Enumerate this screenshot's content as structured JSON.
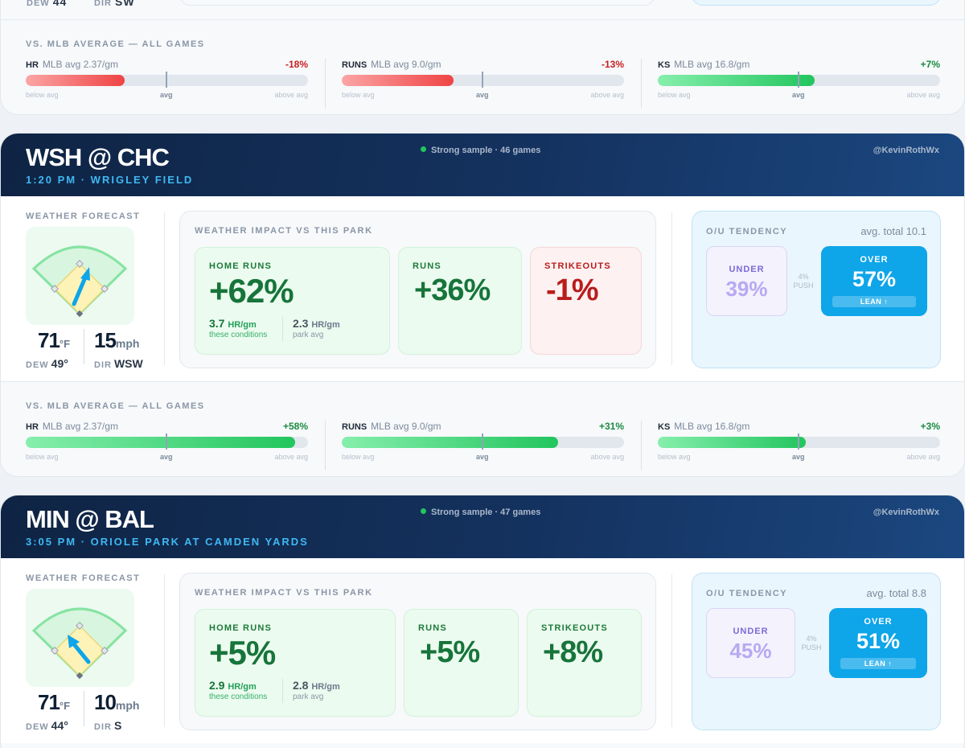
{
  "partial": {
    "dew_label": "DEW",
    "dew_value": "44",
    "dir_label": "DIR",
    "dir_value": "SW",
    "vs_label": "VS. MLB AVERAGE — ALL GAMES",
    "metrics": [
      {
        "name": "HR",
        "avg": "MLB avg 2.37/gm",
        "pct": "-18%",
        "fill_fraction": 0.35,
        "sign": "neg"
      },
      {
        "name": "RUNS",
        "avg": "MLB avg 9.0/gm",
        "pct": "-13%",
        "fill_fraction": 0.395,
        "sign": "neg"
      },
      {
        "name": "KS",
        "avg": "MLB avg 16.8/gm",
        "pct": "+7%",
        "fill_fraction": 0.555,
        "sign": "pos"
      }
    ]
  },
  "scale": {
    "below": "below avg",
    "mid": "avg",
    "above": "above avg"
  },
  "games": [
    {
      "title": "WSH @ CHC",
      "subtitle": "1:20 PM · WRIGLEY FIELD",
      "sample": "Strong sample · 46 games",
      "handle": "@KevinRothWx",
      "weather_label": "WEATHER FORECAST",
      "temp": "71",
      "temp_unit": "°F",
      "wind": "15",
      "wind_unit": "mph",
      "dew_label": "DEW",
      "dew": "49°",
      "dir_label": "DIR",
      "dir": "WSW",
      "impact_label": "WEATHER IMPACT VS THIS PARK",
      "hr_label": "HOME RUNS",
      "hr_pct": "+62%",
      "hr_value": "3.7",
      "hr_unit": "HR/gm",
      "hr_sub": "these conditions",
      "park_value": "2.3",
      "park_unit": "HR/gm",
      "park_sub": "park avg",
      "runs_label": "RUNS",
      "runs_pct": "+36%",
      "ks_label": "STRIKEOUTS",
      "ks_pct": "-1%",
      "ou_label": "O/U TENDENCY",
      "ou_avg": "avg. total 10.1",
      "under_label": "UNDER",
      "under_pct": "39%",
      "push": "4%",
      "push_label": "PUSH",
      "over_label": "OVER",
      "over_pct": "57%",
      "lean": "LEAN ↑",
      "vs_label": "VS. MLB AVERAGE — ALL GAMES",
      "metrics": [
        {
          "name": "HR",
          "avg": "MLB avg 2.37/gm",
          "pct": "+58%",
          "fill_fraction": 0.955,
          "sign": "pos"
        },
        {
          "name": "RUNS",
          "avg": "MLB avg 9.0/gm",
          "pct": "+31%",
          "fill_fraction": 0.765,
          "sign": "pos"
        },
        {
          "name": "KS",
          "avg": "MLB avg 16.8/gm",
          "pct": "+3%",
          "fill_fraction": 0.525,
          "sign": "pos"
        }
      ],
      "colors": {
        "hr": "green",
        "runs": "green",
        "ks": "red"
      }
    },
    {
      "title": "MIN @ BAL",
      "subtitle": "3:05 PM · ORIOLE PARK AT CAMDEN YARDS",
      "sample": "Strong sample · 47 games",
      "handle": "@KevinRothWx",
      "weather_label": "WEATHER FORECAST",
      "temp": "71",
      "temp_unit": "°F",
      "wind": "10",
      "wind_unit": "mph",
      "dew_label": "DEW",
      "dew": "44°",
      "dir_label": "DIR",
      "dir": "S",
      "impact_label": "WEATHER IMPACT VS THIS PARK",
      "hr_label": "HOME RUNS",
      "hr_pct": "+5%",
      "hr_value": "2.9",
      "hr_unit": "HR/gm",
      "hr_sub": "these conditions",
      "park_value": "2.8",
      "park_unit": "HR/gm",
      "park_sub": "park avg",
      "runs_label": "RUNS",
      "runs_pct": "+5%",
      "ks_label": "STRIKEOUTS",
      "ks_pct": "+8%",
      "ou_label": "O/U TENDENCY",
      "ou_avg": "avg. total 8.8",
      "under_label": "UNDER",
      "under_pct": "45%",
      "push": "4%",
      "push_label": "PUSH",
      "over_label": "OVER",
      "over_pct": "51%",
      "lean": "LEAN ↑",
      "colors": {
        "hr": "green",
        "runs": "green",
        "ks": "green"
      }
    }
  ],
  "accent": {
    "green": "#17743a",
    "red": "#b91c1c",
    "blue": "#0ea5e9",
    "navy": "#0f2444"
  }
}
